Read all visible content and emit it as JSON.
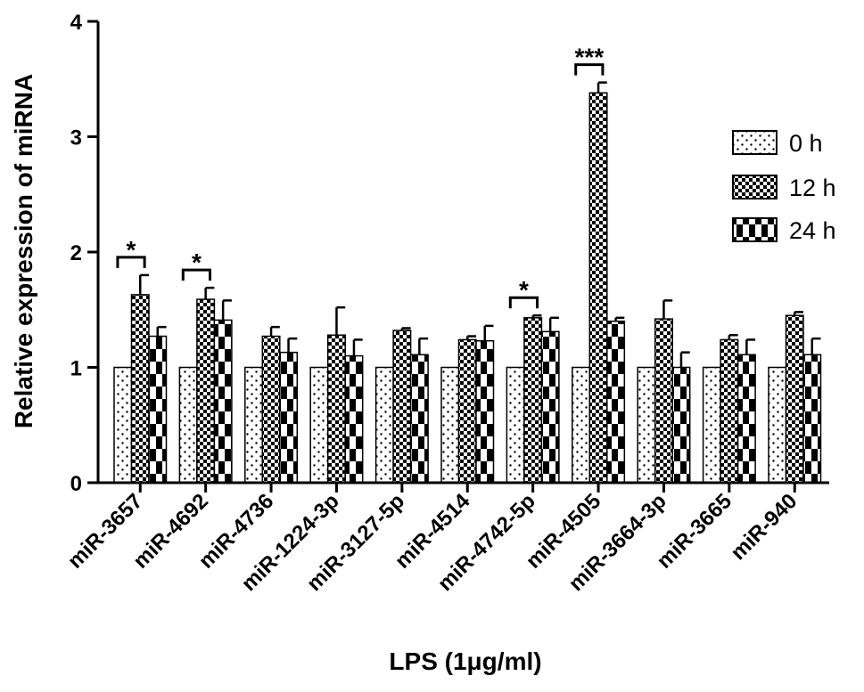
{
  "chart_data": {
    "type": "bar",
    "xlabel": "LPS (1μg/ml)",
    "ylabel": "Relative expression of miRNA",
    "ylim": [
      0,
      4
    ],
    "yticks": [
      "0",
      "1",
      "2",
      "3",
      "4"
    ],
    "categories": [
      "miR-3657",
      "miR-4692",
      "miR-4736",
      "miR-1224-3p",
      "miR-3127-5p",
      "miR-4514",
      "miR-4742-5p",
      "miR-4505",
      "miR-3664-3p",
      "miR-3665",
      "miR-940"
    ],
    "series": [
      {
        "name": "0 h",
        "pattern": "dots",
        "values": [
          1,
          1,
          1,
          1,
          1,
          1,
          1,
          1,
          1,
          1,
          1
        ],
        "errors": [
          0,
          0,
          0,
          0,
          0,
          0,
          0,
          0,
          0,
          0,
          0
        ]
      },
      {
        "name": "12 h",
        "pattern": "checker-fine",
        "values": [
          1.63,
          1.59,
          1.27,
          1.28,
          1.32,
          1.24,
          1.43,
          3.38,
          1.42,
          1.24,
          1.45
        ],
        "errors": [
          0.17,
          0.1,
          0.08,
          0.24,
          0.02,
          0.03,
          0.02,
          0.09,
          0.16,
          0.04,
          0.03
        ]
      },
      {
        "name": "24 h",
        "pattern": "checker-coarse",
        "values": [
          1.27,
          1.41,
          1.13,
          1.1,
          1.11,
          1.23,
          1.31,
          1.4,
          1.0,
          1.11,
          1.11
        ],
        "errors": [
          0.08,
          0.17,
          0.12,
          0.14,
          0.14,
          0.13,
          0.12,
          0.03,
          0.13,
          0.13,
          0.14
        ]
      }
    ],
    "significance": [
      {
        "category_index": 0,
        "label": "*"
      },
      {
        "category_index": 1,
        "label": "*"
      },
      {
        "category_index": 6,
        "label": "*"
      },
      {
        "category_index": 7,
        "label": "***"
      }
    ],
    "legend_position": "right"
  }
}
